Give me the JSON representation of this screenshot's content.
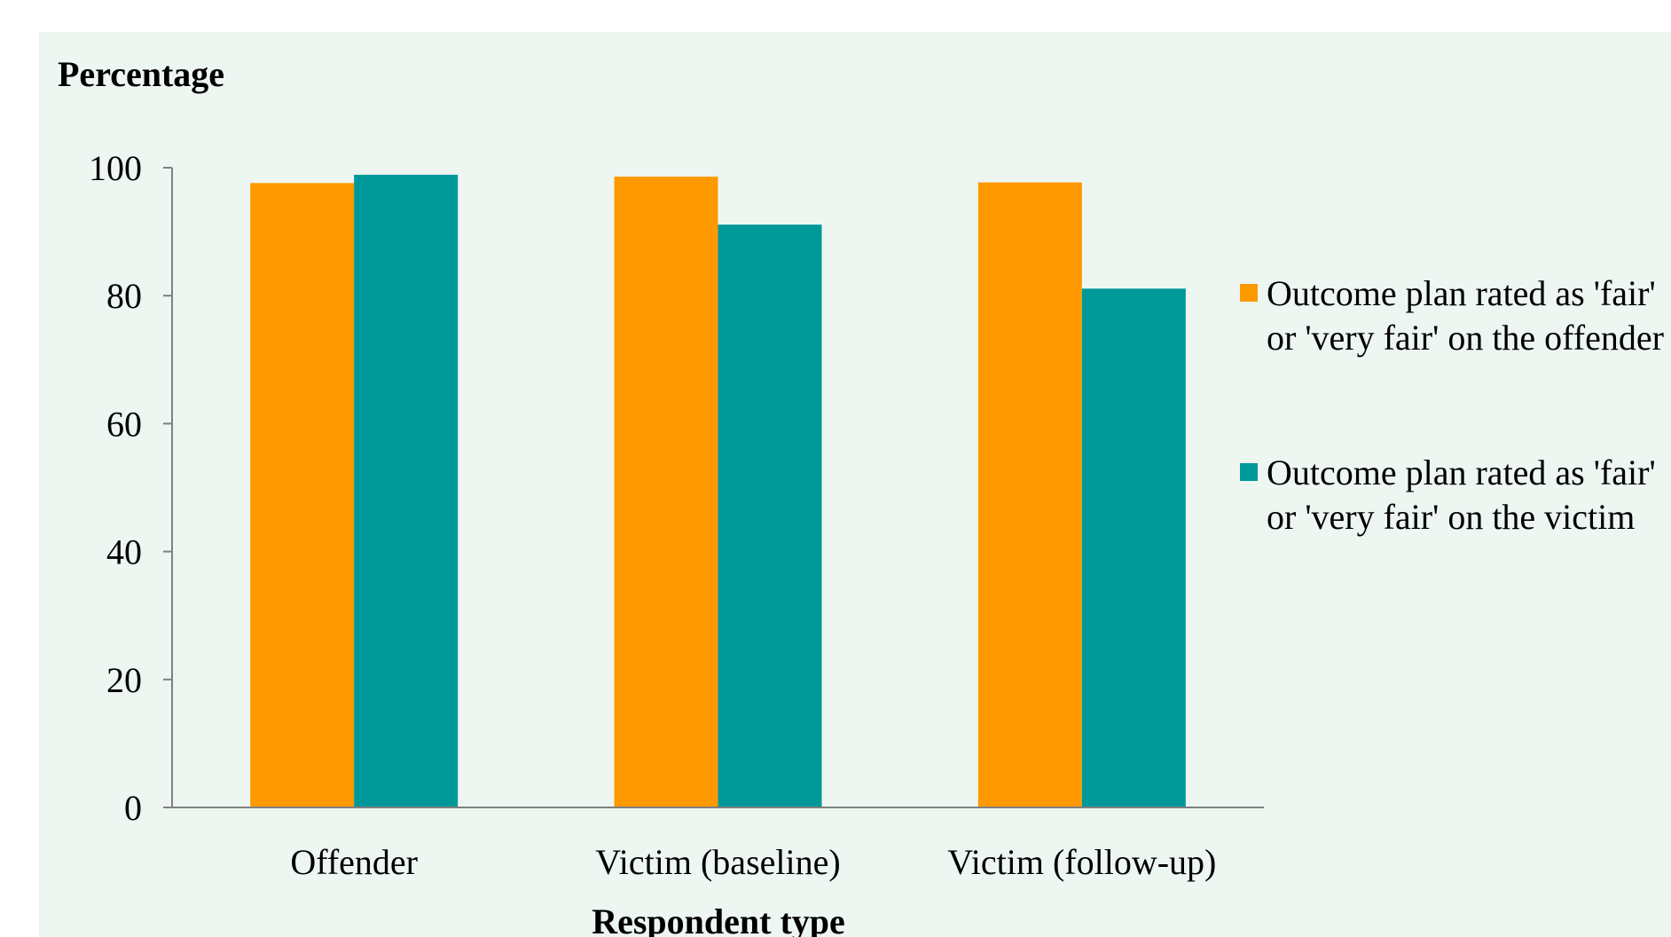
{
  "colors": {
    "background": "#ffffff",
    "panel": "#edf6f1",
    "axis": "#808080",
    "series_orange": "#ff9900",
    "series_teal": "#009999"
  },
  "chart_data": {
    "type": "bar",
    "title": "",
    "ylabel": "Percentage",
    "xlabel": "Respondent type",
    "ylim": [
      0,
      100
    ],
    "yticks": [
      "0",
      "20",
      "40",
      "60",
      "80",
      "100"
    ],
    "grid": false,
    "legend_position": "right",
    "categories": [
      "Offender",
      "Victim (baseline)",
      "Victim (follow-up)"
    ],
    "series": [
      {
        "name": "Outcome plan rated as 'fair' or 'very fair' on the offender",
        "legend_lines": [
          "Outcome plan rated as 'fair'",
          "or 'very fair' on the offender"
        ],
        "color": "#ff9900",
        "values": [
          97.6,
          98.6,
          97.7
        ]
      },
      {
        "name": "Outcome plan rated as 'fair' or 'very fair' on the victim",
        "legend_lines": [
          "Outcome plan rated as 'fair'",
          "or 'very fair' on the victim"
        ],
        "color": "#009999",
        "values": [
          98.9,
          91.1,
          81.1
        ]
      }
    ]
  }
}
